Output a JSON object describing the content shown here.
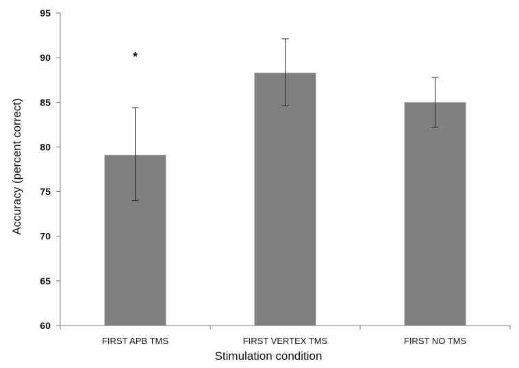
{
  "chart_data": {
    "type": "bar",
    "title": "",
    "xlabel": "Stimulation condition",
    "ylabel": "Accuracy (percent correct)",
    "ylim": [
      60,
      95
    ],
    "yticks": [
      60,
      65,
      70,
      75,
      80,
      85,
      90,
      95
    ],
    "categories": [
      "FIRST APB TMS",
      "FIRST VERTEX TMS",
      "FIRST NO TMS"
    ],
    "values": [
      79.1,
      88.3,
      85.0
    ],
    "error_low": [
      74.0,
      84.6,
      82.2
    ],
    "error_high": [
      84.4,
      92.1,
      87.8
    ],
    "annotations": [
      {
        "category": "FIRST APB TMS",
        "text": "*",
        "y": 90.4
      }
    ],
    "bar_color": "#808080",
    "grid": false,
    "legend": "none"
  }
}
